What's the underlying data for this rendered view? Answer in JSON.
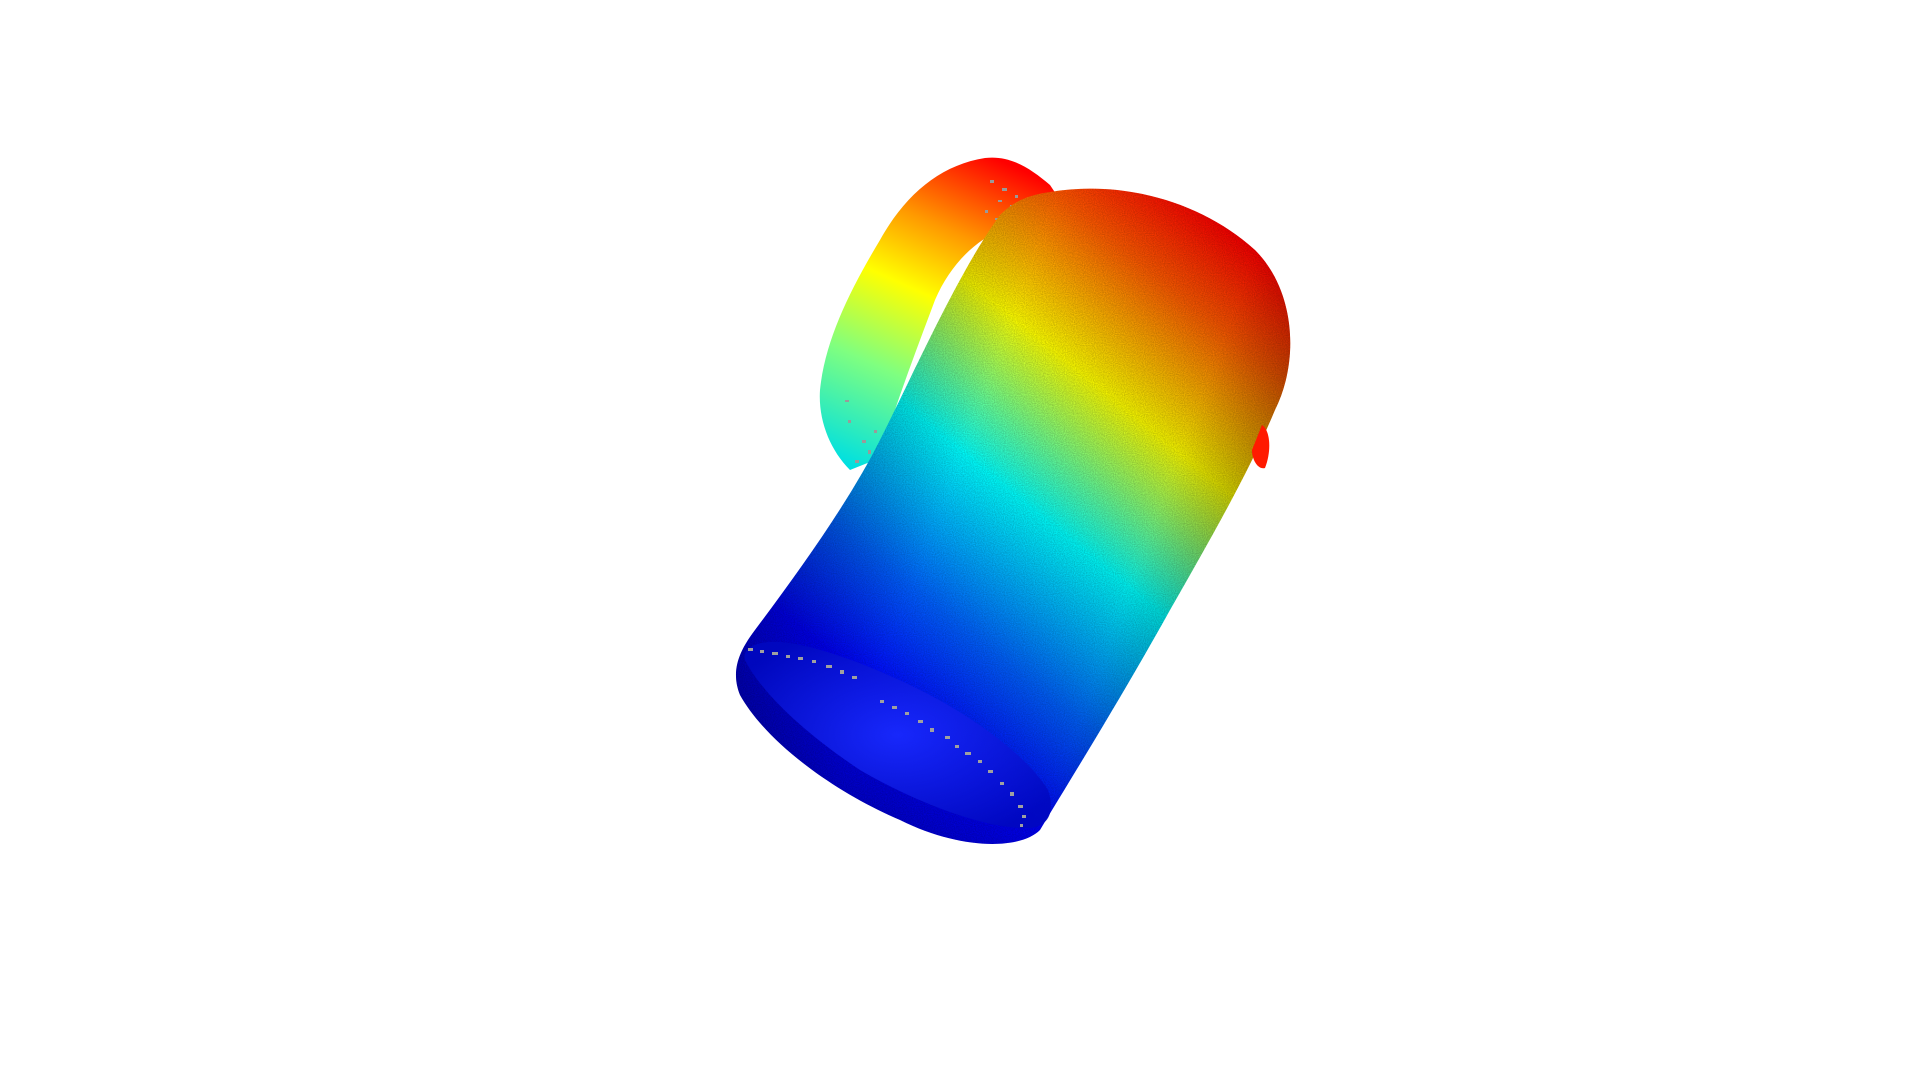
{
  "scene": {
    "background_color": "#ffffff",
    "object": "mug-point-cloud",
    "colormap": "jet",
    "colormap_stops": [
      "#ff0000",
      "#ffff00",
      "#00ffff",
      "#0000ff",
      "#0000cc"
    ],
    "unmapped_point_color": "#9a9a9a"
  }
}
